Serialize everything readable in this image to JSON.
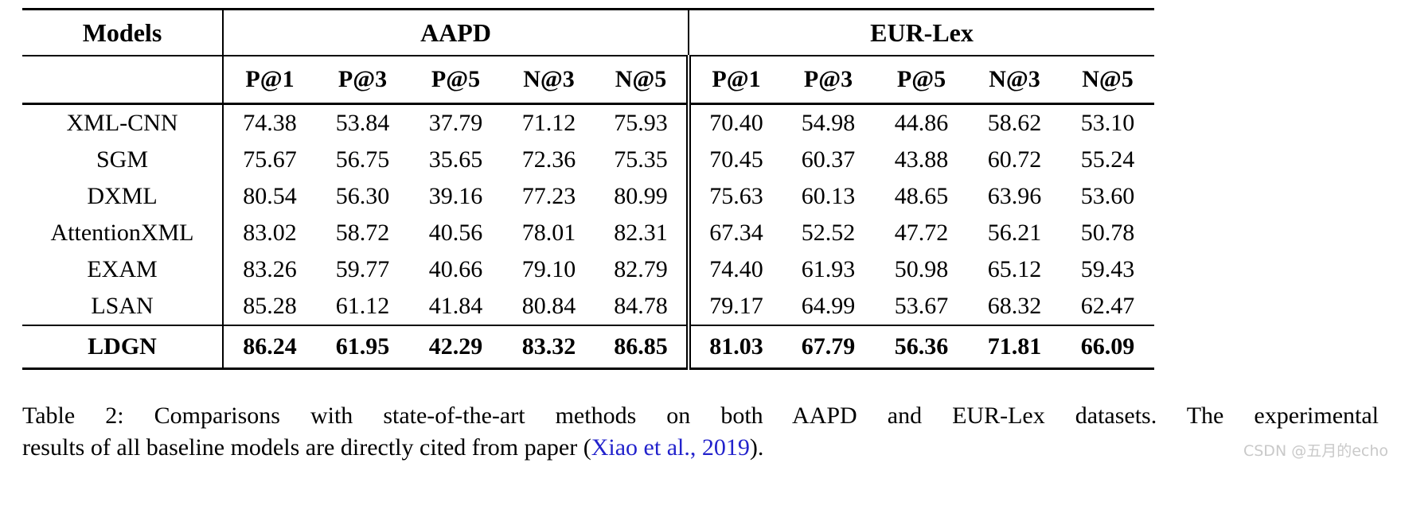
{
  "table": {
    "header": {
      "models_label": "Models",
      "groups": [
        {
          "label": "AAPD"
        },
        {
          "label": "EUR-Lex"
        }
      ],
      "metrics": [
        "P@1",
        "P@3",
        "P@5",
        "N@3",
        "N@5"
      ]
    },
    "rows": [
      {
        "model": "XML-CNN",
        "bold": false,
        "aapd": [
          "74.38",
          "53.84",
          "37.79",
          "71.12",
          "75.93"
        ],
        "eurlex": [
          "70.40",
          "54.98",
          "44.86",
          "58.62",
          "53.10"
        ]
      },
      {
        "model": "SGM",
        "bold": false,
        "aapd": [
          "75.67",
          "56.75",
          "35.65",
          "72.36",
          "75.35"
        ],
        "eurlex": [
          "70.45",
          "60.37",
          "43.88",
          "60.72",
          "55.24"
        ]
      },
      {
        "model": "DXML",
        "bold": false,
        "aapd": [
          "80.54",
          "56.30",
          "39.16",
          "77.23",
          "80.99"
        ],
        "eurlex": [
          "75.63",
          "60.13",
          "48.65",
          "63.96",
          "53.60"
        ]
      },
      {
        "model": "AttentionXML",
        "bold": false,
        "aapd": [
          "83.02",
          "58.72",
          "40.56",
          "78.01",
          "82.31"
        ],
        "eurlex": [
          "67.34",
          "52.52",
          "47.72",
          "56.21",
          "50.78"
        ]
      },
      {
        "model": "EXAM",
        "bold": false,
        "aapd": [
          "83.26",
          "59.77",
          "40.66",
          "79.10",
          "82.79"
        ],
        "eurlex": [
          "74.40",
          "61.93",
          "50.98",
          "65.12",
          "59.43"
        ]
      },
      {
        "model": "LSAN",
        "bold": false,
        "aapd": [
          "85.28",
          "61.12",
          "41.84",
          "80.84",
          "84.78"
        ],
        "eurlex": [
          "79.17",
          "64.99",
          "53.67",
          "68.32",
          "62.47"
        ]
      },
      {
        "model": "LDGN",
        "bold": true,
        "aapd": [
          "86.24",
          "61.95",
          "42.29",
          "83.32",
          "86.85"
        ],
        "eurlex": [
          "81.03",
          "67.79",
          "56.36",
          "71.81",
          "66.09"
        ]
      }
    ]
  },
  "caption": {
    "line1": "Table 2: Comparisons with state-of-the-art methods on both AAPD and EUR-Lex datasets. The experimental",
    "line2_prefix": "results of all baseline models are directly cited from paper (",
    "citation": "Xiao et al., 2019",
    "line2_suffix": ")."
  },
  "watermark": "CSDN @五月的echo",
  "colors": {
    "citation_link": "#2222cc",
    "watermark": "#c9c9c9",
    "rule": "#000000"
  }
}
